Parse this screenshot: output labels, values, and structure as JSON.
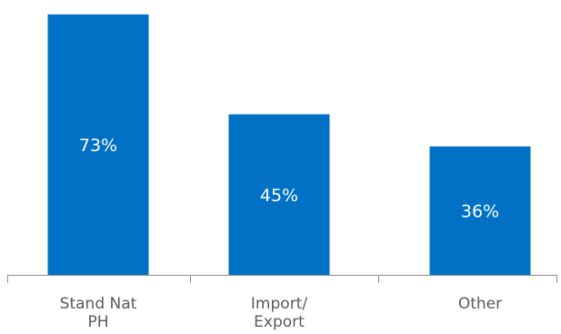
{
  "chart_data": {
    "type": "bar",
    "categories": [
      [
        "Stand Nat",
        "PH"
      ],
      [
        "Import/",
        "Export"
      ],
      [
        "Other"
      ]
    ],
    "values": [
      73,
      45,
      36
    ],
    "value_labels": [
      "73%",
      "45%",
      "36%"
    ],
    "title": "",
    "xlabel": "",
    "ylabel": "",
    "ylim": [
      0,
      75
    ],
    "grid": false,
    "legend": "none",
    "bar_color": "#0071c5",
    "axis_color": "#8c8c8c",
    "label_color": "#5a5a5a"
  }
}
